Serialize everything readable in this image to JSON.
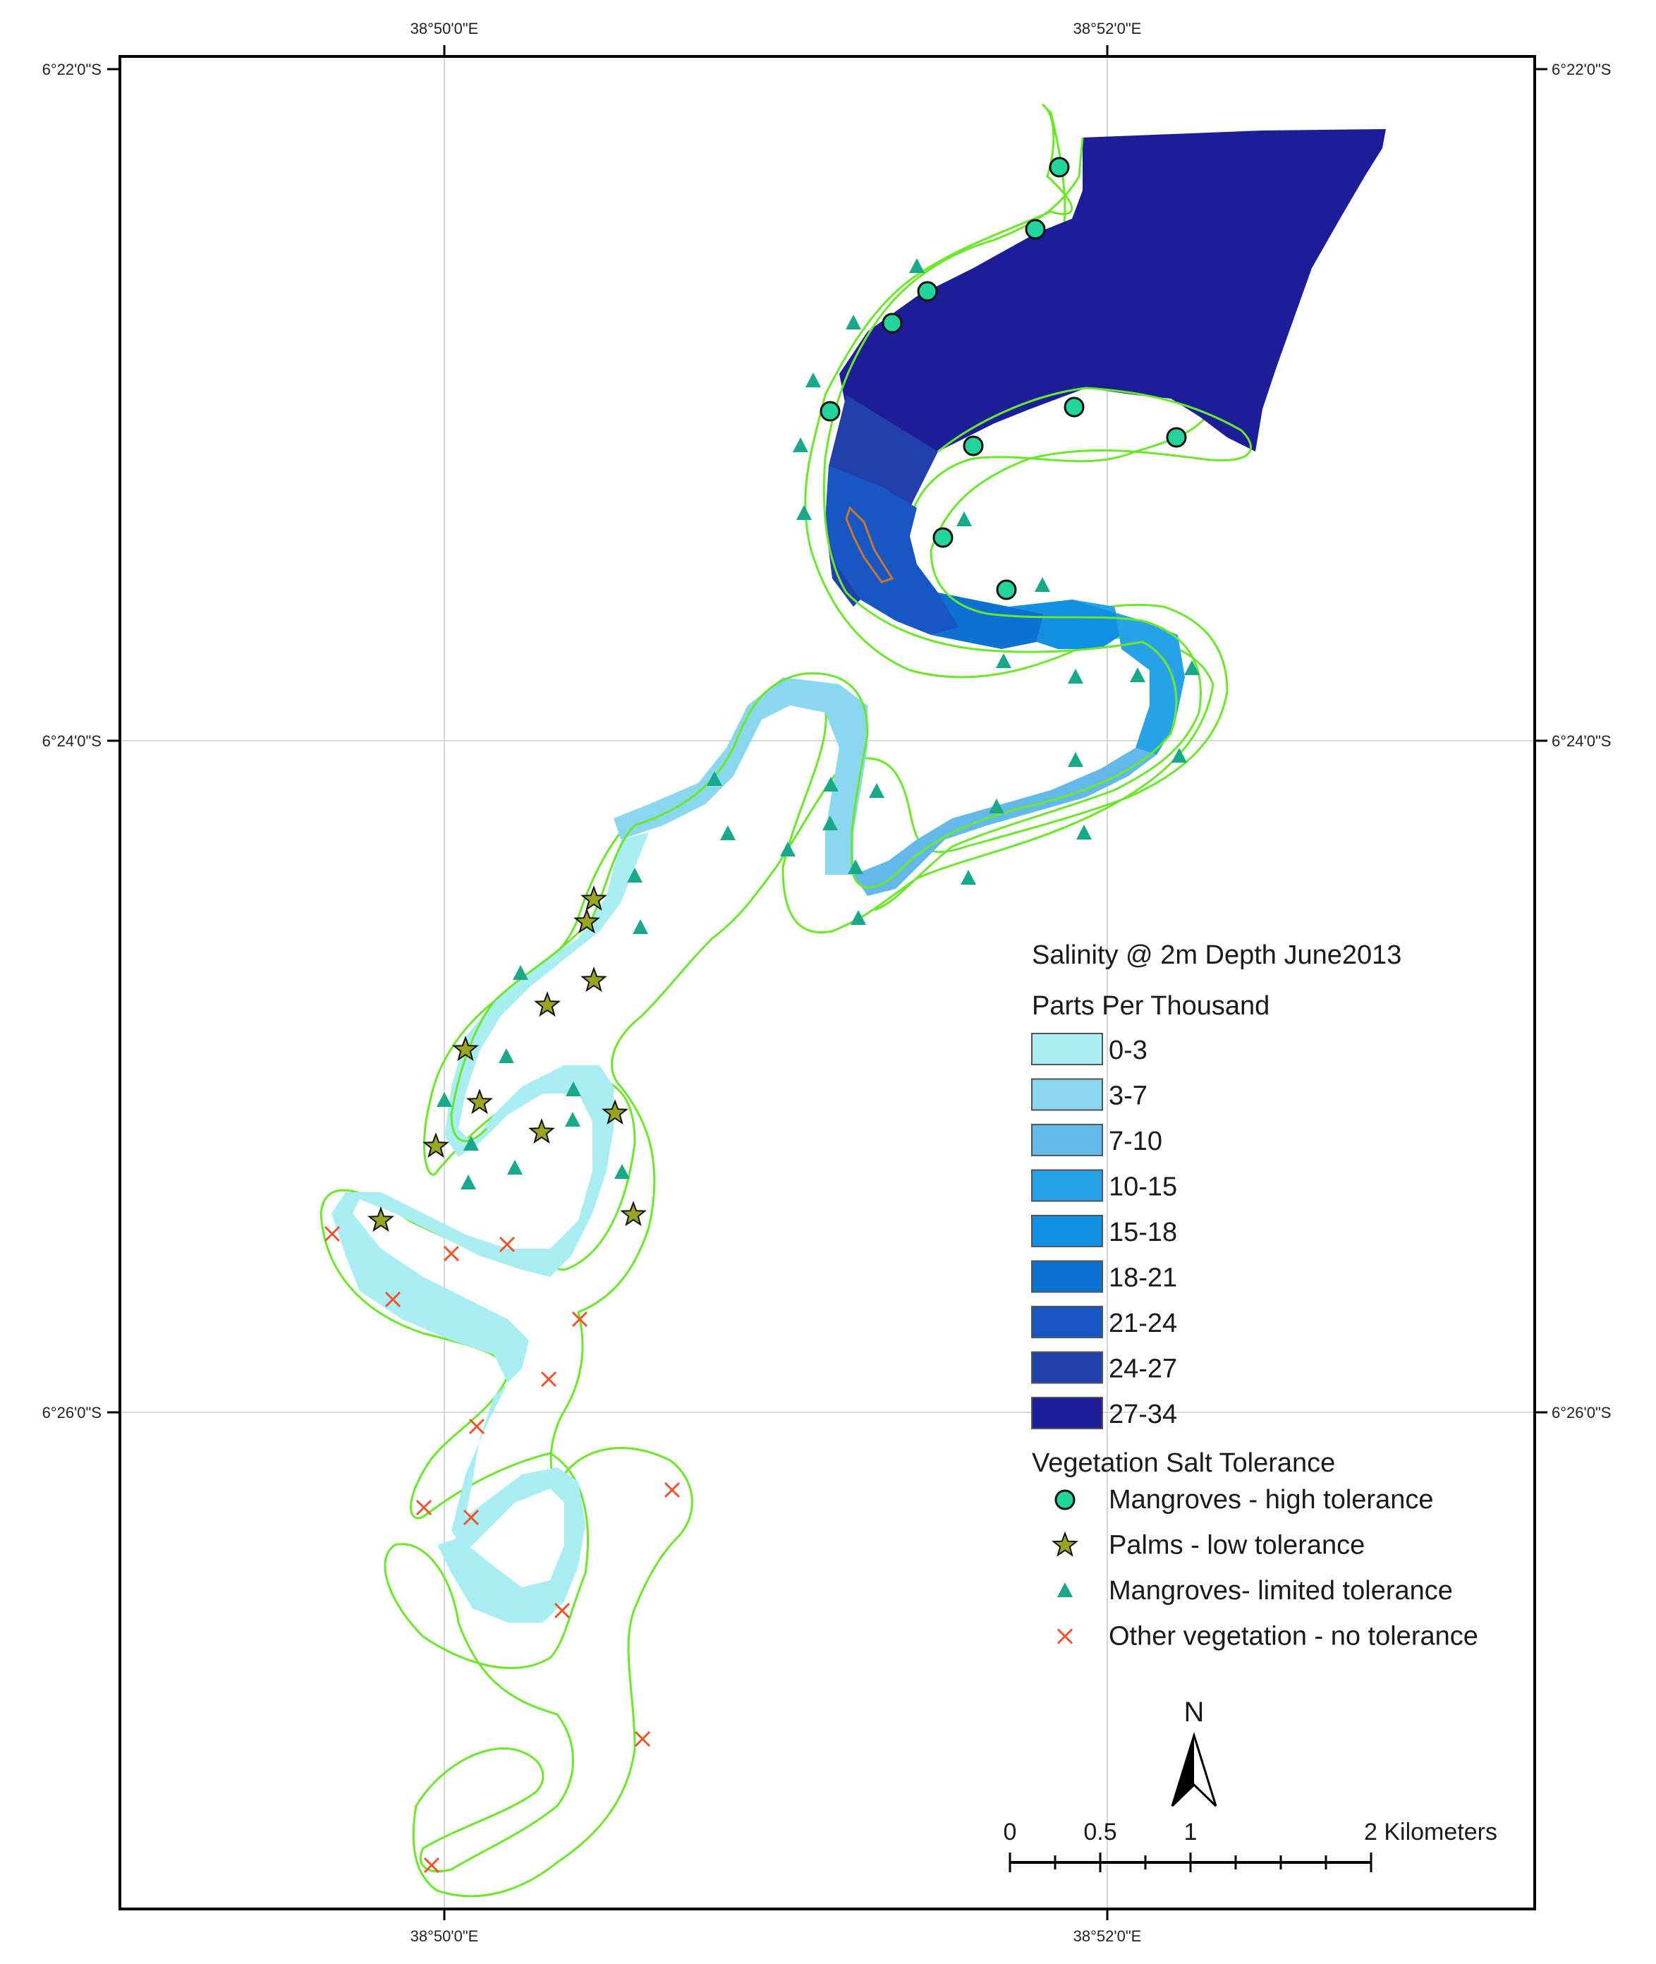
{
  "graticule": {
    "top_labels": [
      "38°50'0\"E",
      "38°52'0\"E"
    ],
    "bottom_labels": [
      "38°50'0\"E",
      "38°52'0\"E"
    ],
    "left_labels": [
      "6°22'0\"S",
      "6°24'0\"S",
      "6°26'0\"S"
    ],
    "right_labels": [
      "6°22'0\"S",
      "6°24'0\"S",
      "6°26'0\"S"
    ]
  },
  "legend": {
    "title": "Salinity @ 2m Depth June2013",
    "subtitle": "Parts Per Thousand",
    "classes": [
      {
        "label": "0-3",
        "color": "#a8eef2"
      },
      {
        "label": "3-7",
        "color": "#8ad8f0"
      },
      {
        "label": "7-10",
        "color": "#63b9ea"
      },
      {
        "label": "10-15",
        "color": "#26a3e6"
      },
      {
        "label": "15-18",
        "color": "#1090e0"
      },
      {
        "label": "18-21",
        "color": "#0c72d2"
      },
      {
        "label": "21-24",
        "color": "#1657c4"
      },
      {
        "label": "24-27",
        "color": "#2140ac"
      },
      {
        "label": "27-34",
        "color": "#1b1e96"
      }
    ],
    "vegetation_title": "Vegetation Salt Tolerance",
    "vegetation": [
      {
        "label": "Mangroves - high tolerance",
        "symbol": "circle",
        "color": "#22d59b"
      },
      {
        "label": "Palms - low tolerance",
        "symbol": "star",
        "color": "#9aa51e"
      },
      {
        "label": "Mangroves- limited tolerance",
        "symbol": "triangle",
        "color": "#18a98a"
      },
      {
        "label": "Other vegetation - no tolerance",
        "symbol": "cross",
        "color": "#f0522a"
      }
    ]
  },
  "north_arrow": {
    "label": "N"
  },
  "scale_bar": {
    "labels": [
      "0",
      "0.5",
      "1",
      "2 Kilometers"
    ]
  },
  "colors": {
    "buffer_line": "#6be82c",
    "frame": "#000000",
    "grid": "#d8d8d8"
  }
}
